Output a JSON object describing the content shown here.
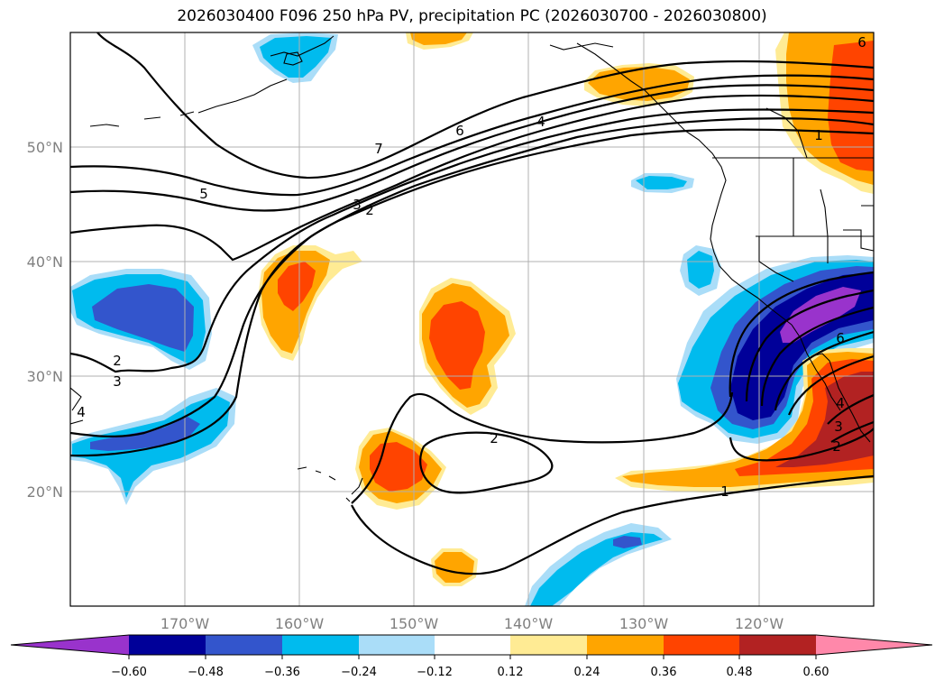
{
  "title": "2026030400 F096 250 hPa PV, precipitation PC (2026030700 - 2026030800)",
  "colors": {
    "purple": "#9933cc",
    "dark_blue": "#000099",
    "med_blue": "#3355cc",
    "cyan": "#00bbee",
    "light_blue": "#aaddf8",
    "white": "#ffffff",
    "light_yellow": "#ffeb94",
    "orange": "#ffa500",
    "red_orange": "#ff4400",
    "dark_red": "#b22222",
    "pink": "#ff88aa"
  },
  "axes": {
    "lon_ticks": [
      "170°W",
      "160°W",
      "150°W",
      "140°W",
      "130°W",
      "120°W"
    ],
    "lat_ticks": [
      "50°N",
      "40°N",
      "30°N",
      "20°N"
    ]
  },
  "colorbar": {
    "ticks": [
      "−0.60",
      "−0.48",
      "−0.36",
      "−0.24",
      "−0.12",
      "0.12",
      "0.24",
      "0.36",
      "0.48",
      "0.60"
    ]
  },
  "contour_labels": [
    "7",
    "6",
    "4",
    "5",
    "3",
    "2",
    "1",
    "1",
    "2",
    "3",
    "4",
    "6",
    "2",
    "3",
    "4",
    "2",
    "6"
  ]
}
